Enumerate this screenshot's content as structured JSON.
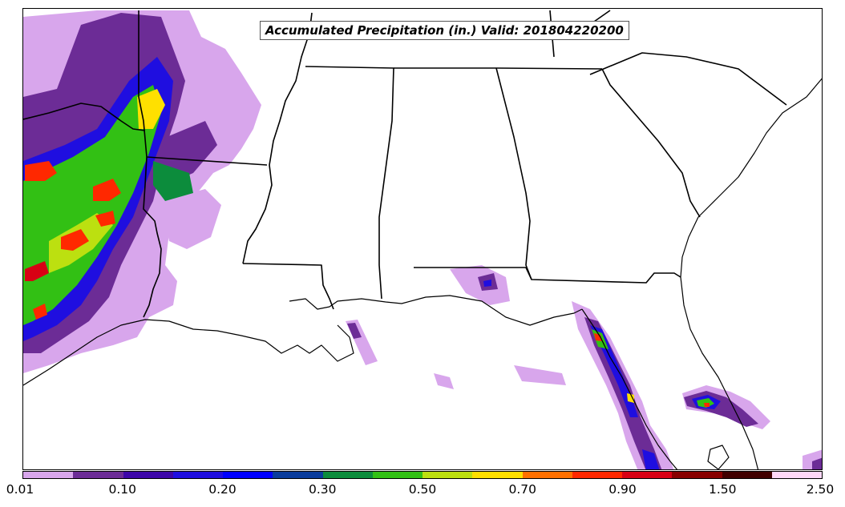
{
  "title": "Accumulated Precipitation (in.) Valid: 201804220200",
  "colorbar": {
    "colors": [
      "#d8a6ec",
      "#6c2c96",
      "#3d06a8",
      "#1f0ee0",
      "#0000ff",
      "#0a3c9c",
      "#0c8c3c",
      "#32c014",
      "#bce010",
      "#ffe000",
      "#ff7000",
      "#ff2800",
      "#d80014",
      "#880000",
      "#400000",
      "#ffd8f8"
    ],
    "tick_labels": [
      "0.01",
      "0.10",
      "0.20",
      "0.30",
      "0.50",
      "0.70",
      "0.90",
      "1.50",
      "2.50"
    ]
  },
  "map": {
    "boundary_color": "#000000",
    "precip_regions": [
      {
        "area": "Louisiana/Arkansas line",
        "level": "heavy"
      },
      {
        "area": "western Florida peninsula coast",
        "level": "moderate"
      },
      {
        "area": "central Florida",
        "level": "moderate"
      },
      {
        "area": "Florida panhandle",
        "level": "light"
      }
    ]
  }
}
